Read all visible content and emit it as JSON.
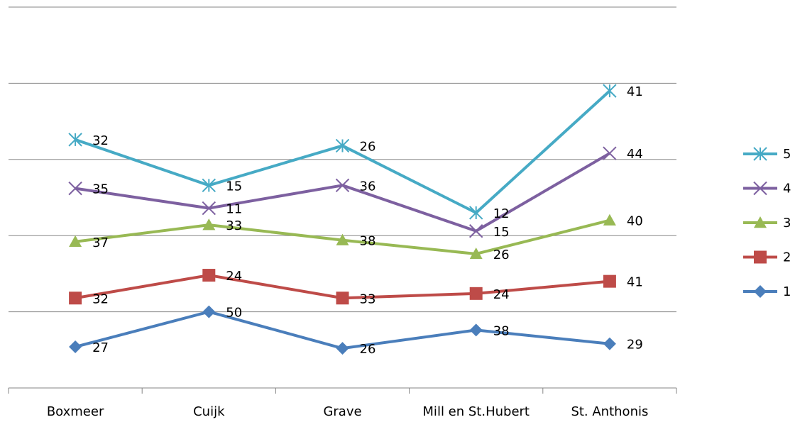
{
  "chart_data": {
    "type": "line",
    "stacked": true,
    "categories": [
      "Boxmeer",
      "Cuijk",
      "Grave",
      "Mill en St.Hubert",
      "St. Anthonis"
    ],
    "series": [
      {
        "name": "1",
        "color": "#4a7ebb",
        "marker": "diamond",
        "values": [
          27,
          50,
          26,
          38,
          29
        ]
      },
      {
        "name": "2",
        "color": "#be4b48",
        "marker": "square",
        "values": [
          32,
          24,
          33,
          24,
          41
        ]
      },
      {
        "name": "3",
        "color": "#98b954",
        "marker": "triangle",
        "values": [
          37,
          33,
          38,
          26,
          40
        ]
      },
      {
        "name": "4",
        "color": "#7d60a0",
        "marker": "x",
        "values": [
          35,
          11,
          36,
          15,
          44
        ]
      },
      {
        "name": "5",
        "color": "#46aac5",
        "marker": "star",
        "values": [
          32,
          15,
          26,
          12,
          41
        ]
      }
    ],
    "ylim": [
      0,
      250
    ],
    "yticks": [
      0,
      50,
      100,
      150,
      200,
      250
    ],
    "grid": true,
    "legend": "right"
  }
}
